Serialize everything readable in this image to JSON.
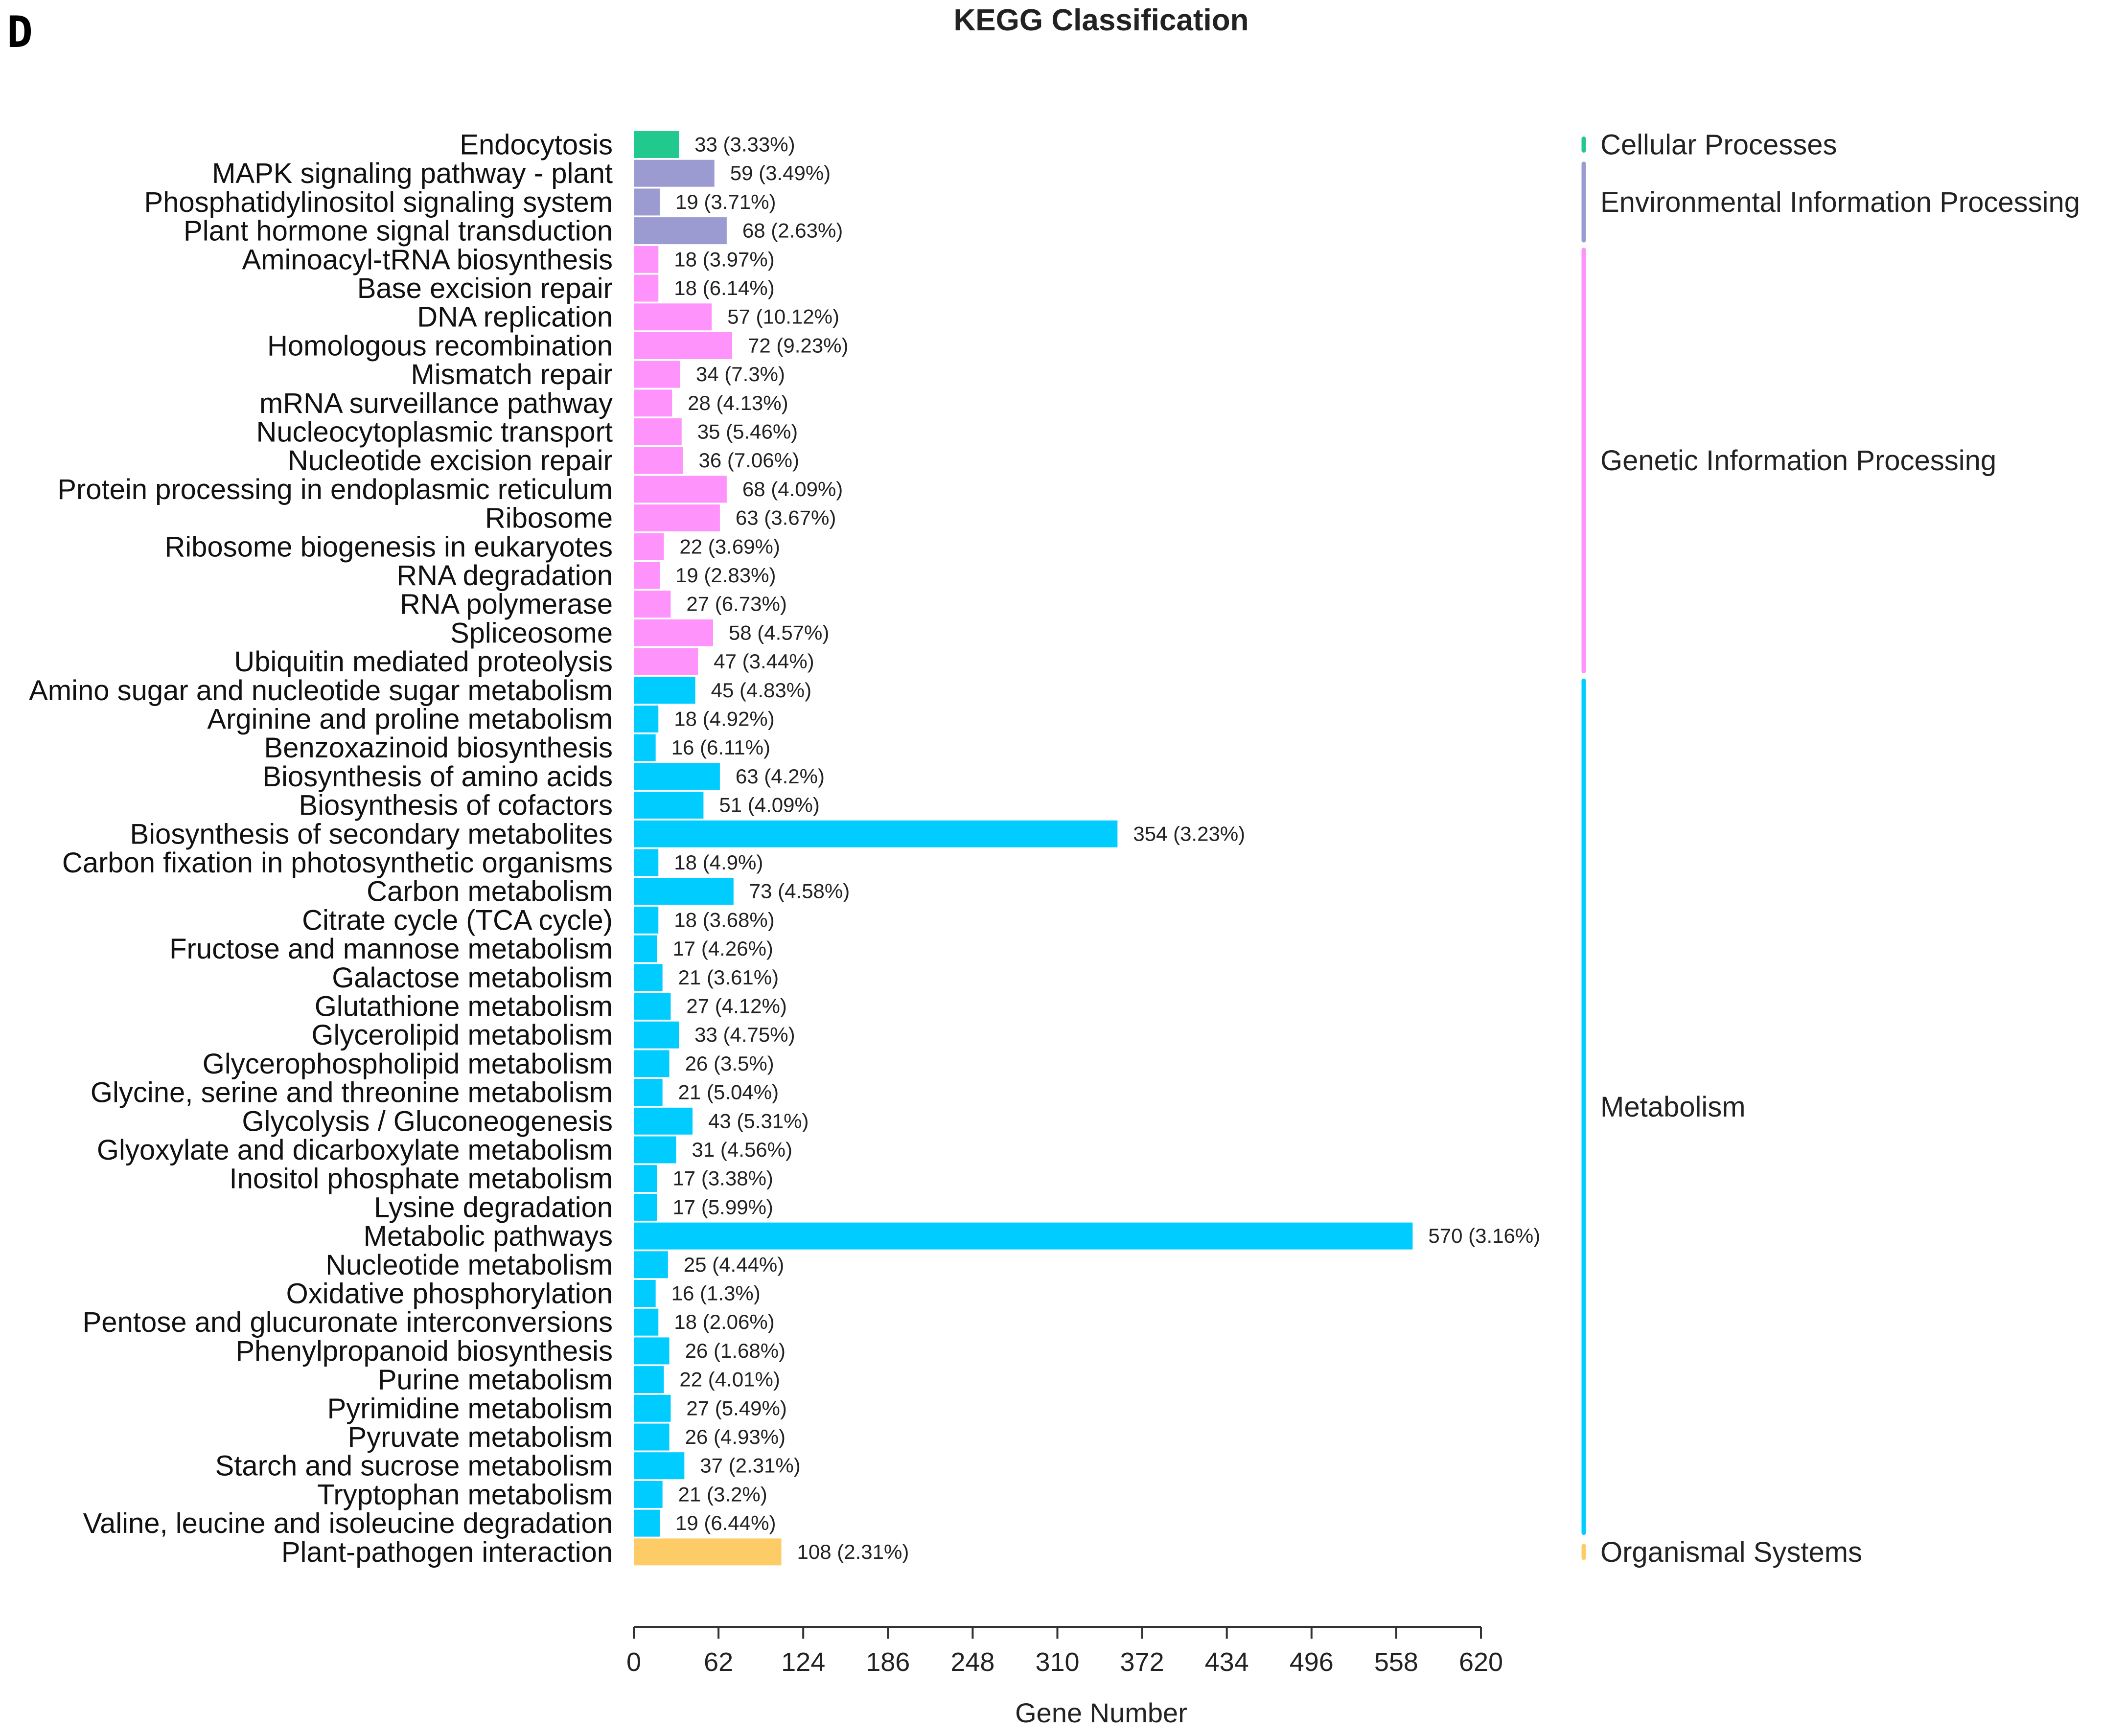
{
  "panel_letter": "D",
  "chart_data": {
    "type": "bar",
    "orientation": "horizontal",
    "title": "KEGG Classification",
    "xlabel": "Gene Number",
    "ylabel": "",
    "xlim": [
      0,
      620
    ],
    "xticks": [
      "0",
      "62",
      "124",
      "186",
      "248",
      "310",
      "372",
      "434",
      "496",
      "558",
      "620"
    ],
    "groups": [
      {
        "name": "Cellular Processes",
        "color": "#22c98f"
      },
      {
        "name": "Environmental Information Processing",
        "color": "#9b9bd1"
      },
      {
        "name": "Genetic Information Processing",
        "color": "#fe93fc"
      },
      {
        "name": "Metabolism",
        "color": "#00ccff"
      },
      {
        "name": "Organismal Systems",
        "color": "#fecc66"
      }
    ],
    "bars": [
      {
        "label": "Endocytosis",
        "value": 33,
        "display": "33 (3.33%)",
        "group": 0
      },
      {
        "label": "MAPK signaling pathway - plant",
        "value": 59,
        "display": "59 (3.49%)",
        "group": 1
      },
      {
        "label": "Phosphatidylinositol signaling system",
        "value": 19,
        "display": "19 (3.71%)",
        "group": 1
      },
      {
        "label": "Plant hormone signal transduction",
        "value": 68,
        "display": "68 (2.63%)",
        "group": 1
      },
      {
        "label": "Aminoacyl-tRNA biosynthesis",
        "value": 18,
        "display": "18 (3.97%)",
        "group": 2
      },
      {
        "label": "Base excision repair",
        "value": 18,
        "display": "18 (6.14%)",
        "group": 2
      },
      {
        "label": "DNA replication",
        "value": 57,
        "display": "57 (10.12%)",
        "group": 2
      },
      {
        "label": "Homologous recombination",
        "value": 72,
        "display": "72 (9.23%)",
        "group": 2
      },
      {
        "label": "Mismatch repair",
        "value": 34,
        "display": "34 (7.3%)",
        "group": 2
      },
      {
        "label": "mRNA surveillance pathway",
        "value": 28,
        "display": "28 (4.13%)",
        "group": 2
      },
      {
        "label": "Nucleocytoplasmic transport",
        "value": 35,
        "display": "35 (5.46%)",
        "group": 2
      },
      {
        "label": "Nucleotide excision repair",
        "value": 36,
        "display": "36 (7.06%)",
        "group": 2
      },
      {
        "label": "Protein processing in endoplasmic reticulum",
        "value": 68,
        "display": "68 (4.09%)",
        "group": 2
      },
      {
        "label": "Ribosome",
        "value": 63,
        "display": "63 (3.67%)",
        "group": 2
      },
      {
        "label": "Ribosome biogenesis in eukaryotes",
        "value": 22,
        "display": "22 (3.69%)",
        "group": 2
      },
      {
        "label": "RNA degradation",
        "value": 19,
        "display": "19 (2.83%)",
        "group": 2
      },
      {
        "label": "RNA polymerase",
        "value": 27,
        "display": "27 (6.73%)",
        "group": 2
      },
      {
        "label": "Spliceosome",
        "value": 58,
        "display": "58 (4.57%)",
        "group": 2
      },
      {
        "label": "Ubiquitin mediated proteolysis",
        "value": 47,
        "display": "47 (3.44%)",
        "group": 2
      },
      {
        "label": "Amino sugar and nucleotide sugar metabolism",
        "value": 45,
        "display": "45 (4.83%)",
        "group": 3
      },
      {
        "label": "Arginine and proline metabolism",
        "value": 18,
        "display": "18 (4.92%)",
        "group": 3
      },
      {
        "label": "Benzoxazinoid biosynthesis",
        "value": 16,
        "display": "16 (6.11%)",
        "group": 3
      },
      {
        "label": "Biosynthesis of amino acids",
        "value": 63,
        "display": "63 (4.2%)",
        "group": 3
      },
      {
        "label": "Biosynthesis of cofactors",
        "value": 51,
        "display": "51 (4.09%)",
        "group": 3
      },
      {
        "label": "Biosynthesis of secondary metabolites",
        "value": 354,
        "display": "354 (3.23%)",
        "group": 3
      },
      {
        "label": "Carbon fixation in photosynthetic organisms",
        "value": 18,
        "display": "18 (4.9%)",
        "group": 3
      },
      {
        "label": "Carbon metabolism",
        "value": 73,
        "display": "73 (4.58%)",
        "group": 3
      },
      {
        "label": "Citrate cycle (TCA cycle)",
        "value": 18,
        "display": "18 (3.68%)",
        "group": 3
      },
      {
        "label": "Fructose and mannose metabolism",
        "value": 17,
        "display": "17 (4.26%)",
        "group": 3
      },
      {
        "label": "Galactose metabolism",
        "value": 21,
        "display": "21 (3.61%)",
        "group": 3
      },
      {
        "label": "Glutathione metabolism",
        "value": 27,
        "display": "27 (4.12%)",
        "group": 3
      },
      {
        "label": "Glycerolipid metabolism",
        "value": 33,
        "display": "33 (4.75%)",
        "group": 3
      },
      {
        "label": "Glycerophospholipid metabolism",
        "value": 26,
        "display": "26 (3.5%)",
        "group": 3
      },
      {
        "label": "Glycine, serine and threonine metabolism",
        "value": 21,
        "display": "21 (5.04%)",
        "group": 3
      },
      {
        "label": "Glycolysis / Gluconeogenesis",
        "value": 43,
        "display": "43 (5.31%)",
        "group": 3
      },
      {
        "label": "Glyoxylate and dicarboxylate metabolism",
        "value": 31,
        "display": "31 (4.56%)",
        "group": 3
      },
      {
        "label": "Inositol phosphate metabolism",
        "value": 17,
        "display": "17 (3.38%)",
        "group": 3
      },
      {
        "label": "Lysine degradation",
        "value": 17,
        "display": "17 (5.99%)",
        "group": 3
      },
      {
        "label": "Metabolic pathways",
        "value": 570,
        "display": "570 (3.16%)",
        "group": 3
      },
      {
        "label": "Nucleotide metabolism",
        "value": 25,
        "display": "25 (4.44%)",
        "group": 3
      },
      {
        "label": "Oxidative phosphorylation",
        "value": 16,
        "display": "16 (1.3%)",
        "group": 3
      },
      {
        "label": "Pentose and glucuronate interconversions",
        "value": 18,
        "display": "18 (2.06%)",
        "group": 3
      },
      {
        "label": "Phenylpropanoid biosynthesis",
        "value": 26,
        "display": "26 (1.68%)",
        "group": 3
      },
      {
        "label": "Purine metabolism",
        "value": 22,
        "display": "22 (4.01%)",
        "group": 3
      },
      {
        "label": "Pyrimidine metabolism",
        "value": 27,
        "display": "27 (5.49%)",
        "group": 3
      },
      {
        "label": "Pyruvate metabolism",
        "value": 26,
        "display": "26 (4.93%)",
        "group": 3
      },
      {
        "label": "Starch and sucrose metabolism",
        "value": 37,
        "display": "37 (2.31%)",
        "group": 3
      },
      {
        "label": "Tryptophan metabolism",
        "value": 21,
        "display": "21 (3.2%)",
        "group": 3
      },
      {
        "label": "Valine, leucine and isoleucine degradation",
        "value": 19,
        "display": "19 (6.44%)",
        "group": 3
      },
      {
        "label": "Plant-pathogen interaction",
        "value": 108,
        "display": "108 (2.31%)",
        "group": 4
      }
    ]
  }
}
